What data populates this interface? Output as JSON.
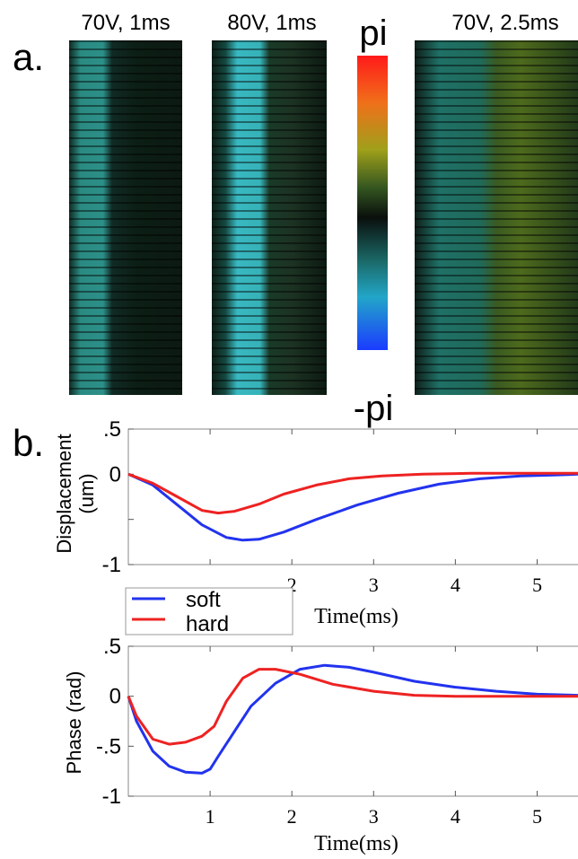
{
  "panel_a": {
    "label": "a.",
    "images": [
      {
        "title": "70V, 1ms"
      },
      {
        "title": "80V, 1ms"
      },
      {
        "title": "70V, 2.5ms"
      }
    ],
    "colorbar": {
      "top_label": "pi",
      "bottom_label": "-pi"
    }
  },
  "panel_b": {
    "label": "b."
  },
  "chart_data": [
    {
      "type": "line",
      "ylabel": "Displacement (um)",
      "xlabel": "Time(ms)",
      "xlim": [
        0,
        5.5
      ],
      "ylim": [
        -1,
        0.5
      ],
      "xticks": [
        1,
        2,
        3,
        4,
        5
      ],
      "xtick_labels": [
        "",
        "2",
        "3",
        "4",
        "5"
      ],
      "yticks": [
        0.5,
        0,
        -0.5,
        -1
      ],
      "ytick_labels": [
        ".5",
        "0",
        "",
        "-1"
      ],
      "legend": {
        "placement": "bottom-left",
        "entries": [
          "soft",
          "hard"
        ]
      },
      "series": [
        {
          "name": "soft",
          "color": "#2233ee",
          "x": [
            0,
            0.3,
            0.6,
            0.9,
            1.2,
            1.4,
            1.6,
            1.9,
            2.3,
            2.8,
            3.3,
            3.8,
            4.3,
            4.8,
            5.2,
            5.5
          ],
          "y": [
            0.0,
            -0.12,
            -0.34,
            -0.56,
            -0.7,
            -0.73,
            -0.72,
            -0.64,
            -0.5,
            -0.34,
            -0.21,
            -0.11,
            -0.05,
            -0.02,
            -0.01,
            0.0
          ]
        },
        {
          "name": "hard",
          "color": "#ee2222",
          "x": [
            0,
            0.3,
            0.6,
            0.9,
            1.1,
            1.3,
            1.6,
            1.9,
            2.3,
            2.7,
            3.1,
            3.6,
            4.2,
            5.0,
            5.5
          ],
          "y": [
            0.0,
            -0.1,
            -0.25,
            -0.4,
            -0.43,
            -0.41,
            -0.33,
            -0.22,
            -0.12,
            -0.05,
            -0.02,
            0.0,
            0.01,
            0.01,
            0.01
          ]
        }
      ]
    },
    {
      "type": "line",
      "ylabel": "Phase (rad)",
      "xlabel": "Time(ms)",
      "xlim": [
        0,
        5.5
      ],
      "ylim": [
        -1,
        0.5
      ],
      "xticks": [
        1,
        2,
        3,
        4,
        5
      ],
      "xtick_labels": [
        "1",
        "2",
        "3",
        "4",
        "5"
      ],
      "yticks": [
        0.5,
        0,
        -0.5,
        -1
      ],
      "ytick_labels": [
        ".5",
        "0",
        "-.5",
        "-1"
      ],
      "series": [
        {
          "name": "soft",
          "color": "#2233ee",
          "x": [
            0,
            0.1,
            0.3,
            0.5,
            0.7,
            0.9,
            1.0,
            1.1,
            1.3,
            1.5,
            1.8,
            2.1,
            2.4,
            2.7,
            3.0,
            3.5,
            4.0,
            4.5,
            5.0,
            5.5
          ],
          "y": [
            0.0,
            -0.25,
            -0.55,
            -0.7,
            -0.76,
            -0.77,
            -0.73,
            -0.6,
            -0.35,
            -0.1,
            0.13,
            0.27,
            0.31,
            0.29,
            0.24,
            0.15,
            0.09,
            0.05,
            0.02,
            0.01
          ]
        },
        {
          "name": "hard",
          "color": "#ee2222",
          "x": [
            0,
            0.1,
            0.3,
            0.5,
            0.7,
            0.9,
            1.05,
            1.2,
            1.4,
            1.6,
            1.8,
            2.1,
            2.5,
            3.0,
            3.5,
            4.0,
            4.5,
            5.0,
            5.5
          ],
          "y": [
            0.0,
            -0.2,
            -0.43,
            -0.48,
            -0.46,
            -0.4,
            -0.3,
            -0.05,
            0.18,
            0.27,
            0.27,
            0.22,
            0.12,
            0.05,
            0.01,
            0.0,
            0.0,
            0.0,
            0.0
          ]
        }
      ]
    }
  ]
}
